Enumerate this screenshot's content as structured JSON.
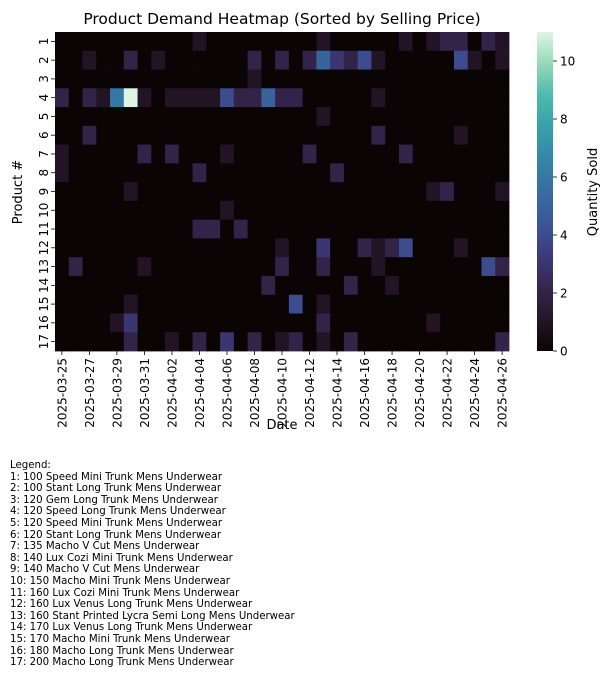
{
  "chart_data": {
    "type": "heatmap",
    "title": "Product Demand Heatmap (Sorted by Selling Price)",
    "xlabel": "Date",
    "ylabel": "Product #",
    "colorbar_label": "Quantity Sold",
    "colormap": "mako",
    "vmin": 0,
    "vmax": 11,
    "colorbar_ticks": [
      "0",
      "2",
      "4",
      "6",
      "8",
      "10"
    ],
    "y_tick_labels": [
      "1",
      "2",
      "3",
      "4",
      "5",
      "6",
      "7",
      "8",
      "9",
      "10",
      "11",
      "12",
      "13",
      "14",
      "15",
      "16",
      "17"
    ],
    "x_tick_labels": [
      "2025-03-25",
      "2025-03-27",
      "2025-03-29",
      "2025-03-31",
      "2025-04-02",
      "2025-04-04",
      "2025-04-06",
      "2025-04-08",
      "2025-04-10",
      "2025-04-12",
      "2025-04-14",
      "2025-04-16",
      "2025-04-18",
      "2025-04-20",
      "2025-04-22",
      "2025-04-24",
      "2025-04-26"
    ],
    "x_tick_every_n_columns": 2,
    "values": [
      [
        0,
        0,
        0,
        0,
        0,
        0,
        0,
        0,
        0,
        0,
        1,
        0,
        0,
        0,
        0,
        0,
        0,
        0,
        0,
        1,
        0,
        0,
        0,
        0,
        0,
        1,
        0,
        1,
        2,
        2,
        0,
        2,
        1
      ],
      [
        0,
        0,
        1,
        0,
        0,
        2,
        0,
        1,
        0,
        0,
        0,
        0,
        0,
        0,
        2,
        0,
        2,
        0,
        2,
        5,
        3,
        2,
        4,
        1,
        0,
        0,
        0,
        0,
        0,
        4,
        1,
        0,
        1
      ],
      [
        0,
        0,
        0,
        0,
        0,
        0,
        0,
        0,
        0,
        0,
        0,
        0,
        0,
        0,
        1,
        0,
        0,
        0,
        0,
        0,
        0,
        0,
        0,
        0,
        0,
        0,
        0,
        0,
        0,
        0,
        0,
        0,
        0
      ],
      [
        2,
        0,
        2,
        1,
        6,
        11,
        1,
        0,
        1,
        1,
        1,
        1,
        4,
        2,
        2,
        5,
        2,
        2,
        0,
        0,
        0,
        0,
        0,
        1,
        0,
        0,
        0,
        0,
        0,
        0,
        0,
        0,
        0
      ],
      [
        0,
        0,
        0,
        0,
        0,
        0,
        0,
        0,
        0,
        0,
        0,
        0,
        0,
        0,
        0,
        0,
        0,
        0,
        0,
        1,
        0,
        0,
        0,
        0,
        0,
        0,
        0,
        0,
        0,
        0,
        0,
        0,
        0
      ],
      [
        0,
        0,
        2,
        0,
        0,
        0,
        0,
        0,
        0,
        0,
        0,
        0,
        0,
        0,
        0,
        0,
        0,
        0,
        0,
        0,
        0,
        0,
        0,
        2,
        0,
        0,
        0,
        0,
        0,
        1,
        0,
        0,
        0
      ],
      [
        1,
        0,
        0,
        0,
        0,
        0,
        2,
        0,
        2,
        0,
        0,
        0,
        1,
        0,
        0,
        0,
        0,
        0,
        2,
        0,
        0,
        0,
        0,
        0,
        0,
        2,
        0,
        0,
        0,
        0,
        0,
        0,
        0
      ],
      [
        1,
        0,
        0,
        0,
        0,
        0,
        0,
        0,
        0,
        0,
        2,
        0,
        0,
        0,
        0,
        0,
        0,
        0,
        0,
        0,
        2,
        0,
        0,
        0,
        0,
        0,
        0,
        0,
        0,
        0,
        0,
        0,
        0
      ],
      [
        0,
        0,
        0,
        0,
        0,
        1,
        0,
        0,
        0,
        0,
        0,
        0,
        0,
        0,
        0,
        0,
        0,
        0,
        0,
        0,
        0,
        0,
        0,
        0,
        0,
        0,
        0,
        1,
        2,
        0,
        0,
        0,
        1
      ],
      [
        0,
        0,
        0,
        0,
        0,
        0,
        0,
        0,
        0,
        0,
        0,
        0,
        1,
        0,
        0,
        0,
        0,
        0,
        0,
        0,
        0,
        0,
        0,
        0,
        0,
        0,
        0,
        0,
        0,
        0,
        0,
        0,
        0
      ],
      [
        0,
        0,
        0,
        0,
        0,
        0,
        0,
        0,
        0,
        0,
        2,
        2,
        0,
        2,
        0,
        0,
        0,
        0,
        0,
        0,
        0,
        0,
        0,
        0,
        0,
        0,
        0,
        0,
        0,
        0,
        0,
        0,
        0
      ],
      [
        0,
        0,
        0,
        0,
        0,
        0,
        0,
        0,
        0,
        0,
        0,
        0,
        0,
        0,
        0,
        0,
        1,
        0,
        0,
        3,
        0,
        0,
        2,
        1,
        2,
        4,
        0,
        0,
        0,
        1,
        0,
        0,
        0
      ],
      [
        0,
        2,
        0,
        0,
        0,
        0,
        1,
        0,
        0,
        0,
        0,
        0,
        0,
        0,
        0,
        0,
        2,
        0,
        0,
        2,
        0,
        0,
        0,
        1,
        0,
        0,
        0,
        0,
        0,
        0,
        0,
        4,
        2
      ],
      [
        0,
        0,
        0,
        0,
        0,
        0,
        0,
        0,
        0,
        0,
        0,
        0,
        0,
        0,
        0,
        2,
        0,
        0,
        0,
        0,
        0,
        2,
        0,
        0,
        1,
        0,
        0,
        0,
        0,
        0,
        0,
        0,
        0
      ],
      [
        0,
        0,
        0,
        0,
        0,
        1,
        0,
        0,
        0,
        0,
        0,
        0,
        0,
        0,
        0,
        0,
        0,
        4,
        0,
        1,
        0,
        0,
        0,
        0,
        0,
        0,
        0,
        0,
        0,
        0,
        0,
        0,
        0
      ],
      [
        0,
        0,
        0,
        0,
        1,
        3,
        0,
        0,
        0,
        0,
        0,
        0,
        0,
        0,
        0,
        0,
        0,
        0,
        0,
        2,
        0,
        0,
        0,
        0,
        0,
        0,
        0,
        1,
        0,
        0,
        0,
        0,
        0
      ],
      [
        0,
        0,
        0,
        0,
        0,
        2,
        0,
        0,
        1,
        0,
        2,
        0,
        3,
        0,
        2,
        0,
        1,
        2,
        0,
        1,
        0,
        2,
        0,
        0,
        0,
        0,
        0,
        0,
        0,
        0,
        0,
        0,
        2
      ]
    ]
  },
  "legend": {
    "title": "Legend:",
    "items": [
      "1: 100 Speed Mini Trunk Mens Underwear",
      "2: 100 Stant Long Trunk Mens Underwear",
      "3: 120 Gem Long Trunk Mens Underwear",
      "4: 120 Speed Long Trunk Mens Underwear",
      "5: 120 Speed Mini Trunk Mens Underwear",
      "6: 120 Stant Long Trunk Mens Underwear",
      "7: 135 Macho V Cut Mens Underwear",
      "8: 140 Lux Cozi Mini Trunk Mens Underwear",
      "9: 140 Macho V Cut Mens Underwear",
      "10: 150 Macho Mini Trunk Mens Underwear",
      "11: 160 Lux Cozi Mini Trunk Mens Underwear",
      "12: 160 Lux Venus Long Trunk Mens Underwear",
      "13: 160 Stant Printed Lycra Semi Long Mens Underwear",
      "14: 170 Lux Venus Long Trunk Mens Underwear",
      "15: 170 Macho Mini Trunk Mens Underwear",
      "16: 180 Macho Long Trunk Mens Underwear",
      "17: 200 Macho Long Trunk Mens Underwear"
    ]
  }
}
